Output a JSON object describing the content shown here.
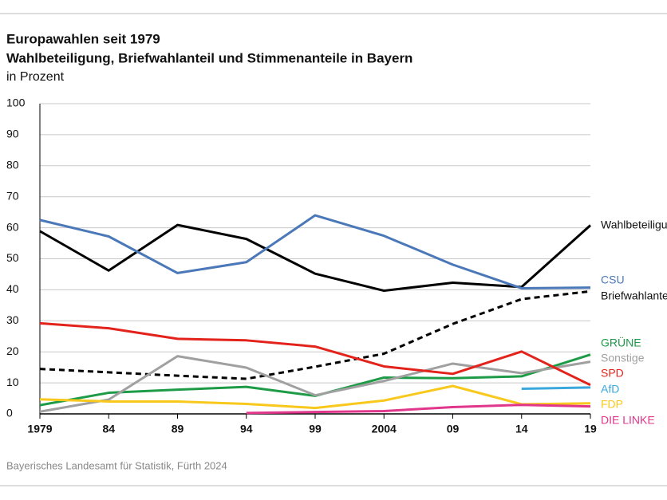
{
  "chart_data": {
    "type": "line",
    "title": "Europawahlen seit 1979",
    "subtitle": "Wahlbeteiligung, Briefwahlanteil und Stimmenanteile in Bayern",
    "unit_label": "in Prozent",
    "source": "Bayerisches Landesamt für Statistik, Fürth 2024",
    "categories": [
      "1979",
      "84",
      "89",
      "94",
      "99",
      "2004",
      "09",
      "14",
      "19"
    ],
    "ylim": [
      0,
      100
    ],
    "yticks": [
      0,
      10,
      20,
      30,
      40,
      50,
      60,
      70,
      80,
      90,
      100
    ],
    "grid": true,
    "series": [
      {
        "name": "Wahlbeteiligung",
        "color": "#000000",
        "style": "solid",
        "values": [
          58.9,
          46.2,
          60.9,
          56.4,
          45.2,
          39.7,
          42.3,
          40.9,
          60.8
        ]
      },
      {
        "name": "CSU",
        "color": "#4a78b8",
        "style": "solid",
        "values": [
          62.5,
          57.2,
          45.4,
          48.9,
          64.0,
          57.4,
          48.1,
          40.5,
          40.7
        ]
      },
      {
        "name": "Briefwahlanteil",
        "color": "#000000",
        "style": "dashed",
        "values": [
          14.5,
          13.4,
          12.3,
          11.3,
          15.2,
          19.4,
          29.0,
          37.0,
          39.5
        ]
      },
      {
        "name": "GRÜNE",
        "color": "#1e9b46",
        "style": "solid",
        "values": [
          2.8,
          6.8,
          7.8,
          8.7,
          5.8,
          11.7,
          11.5,
          12.1,
          19.1
        ]
      },
      {
        "name": "Sonstige",
        "color": "#a0a0a0",
        "style": "solid",
        "values": [
          0.7,
          4.6,
          18.6,
          14.9,
          6.0,
          10.6,
          16.2,
          13.1,
          16.8
        ]
      },
      {
        "name": "SPD",
        "color": "#e3231b",
        "style": "solid",
        "values": [
          29.2,
          27.6,
          24.2,
          23.7,
          21.7,
          15.3,
          12.9,
          20.1,
          9.3
        ]
      },
      {
        "name": "AfD",
        "color": "#3aa8dc",
        "style": "solid",
        "values": [
          null,
          null,
          null,
          null,
          null,
          null,
          null,
          8.1,
          8.5
        ]
      },
      {
        "name": "FDP",
        "color": "#f8c81c",
        "style": "solid",
        "values": [
          4.7,
          4.0,
          4.0,
          3.2,
          1.9,
          4.3,
          9.0,
          3.1,
          3.4
        ]
      },
      {
        "name": "DIE LINKE",
        "color": "#e0368c",
        "style": "solid",
        "values": [
          null,
          null,
          null,
          0.3,
          0.6,
          0.9,
          2.2,
          2.9,
          2.4
        ]
      }
    ]
  }
}
